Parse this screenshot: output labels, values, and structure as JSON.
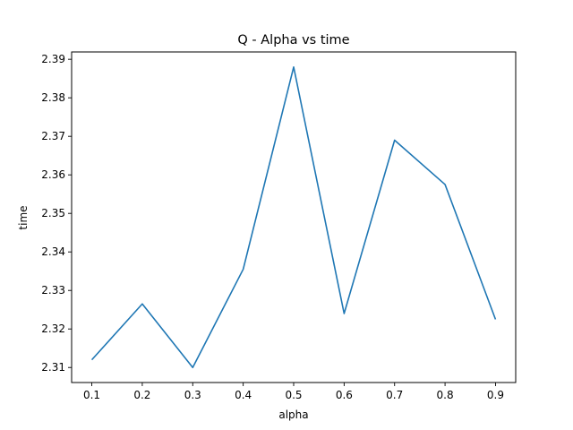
{
  "chart_data": {
    "type": "line",
    "title": "Q - Alpha vs time",
    "xlabel": "alpha",
    "ylabel": "time",
    "x": [
      0.1,
      0.2,
      0.3,
      0.4,
      0.5,
      0.6,
      0.7,
      0.8,
      0.9
    ],
    "series": [
      {
        "values": [
          2.312,
          2.3265,
          2.31,
          2.3355,
          2.388,
          2.324,
          2.369,
          2.3575,
          2.3225
        ],
        "color": "#1f77b4"
      }
    ],
    "xlim": [
      0.06,
      0.94
    ],
    "ylim": [
      2.3061,
      2.3919
    ],
    "xticks": [
      "0.1",
      "0.2",
      "0.3",
      "0.4",
      "0.5",
      "0.6",
      "0.7",
      "0.8",
      "0.9"
    ],
    "yticks": [
      "2.31",
      "2.32",
      "2.33",
      "2.34",
      "2.35",
      "2.36",
      "2.37",
      "2.38",
      "2.39"
    ],
    "grid": false,
    "legend": "none"
  }
}
